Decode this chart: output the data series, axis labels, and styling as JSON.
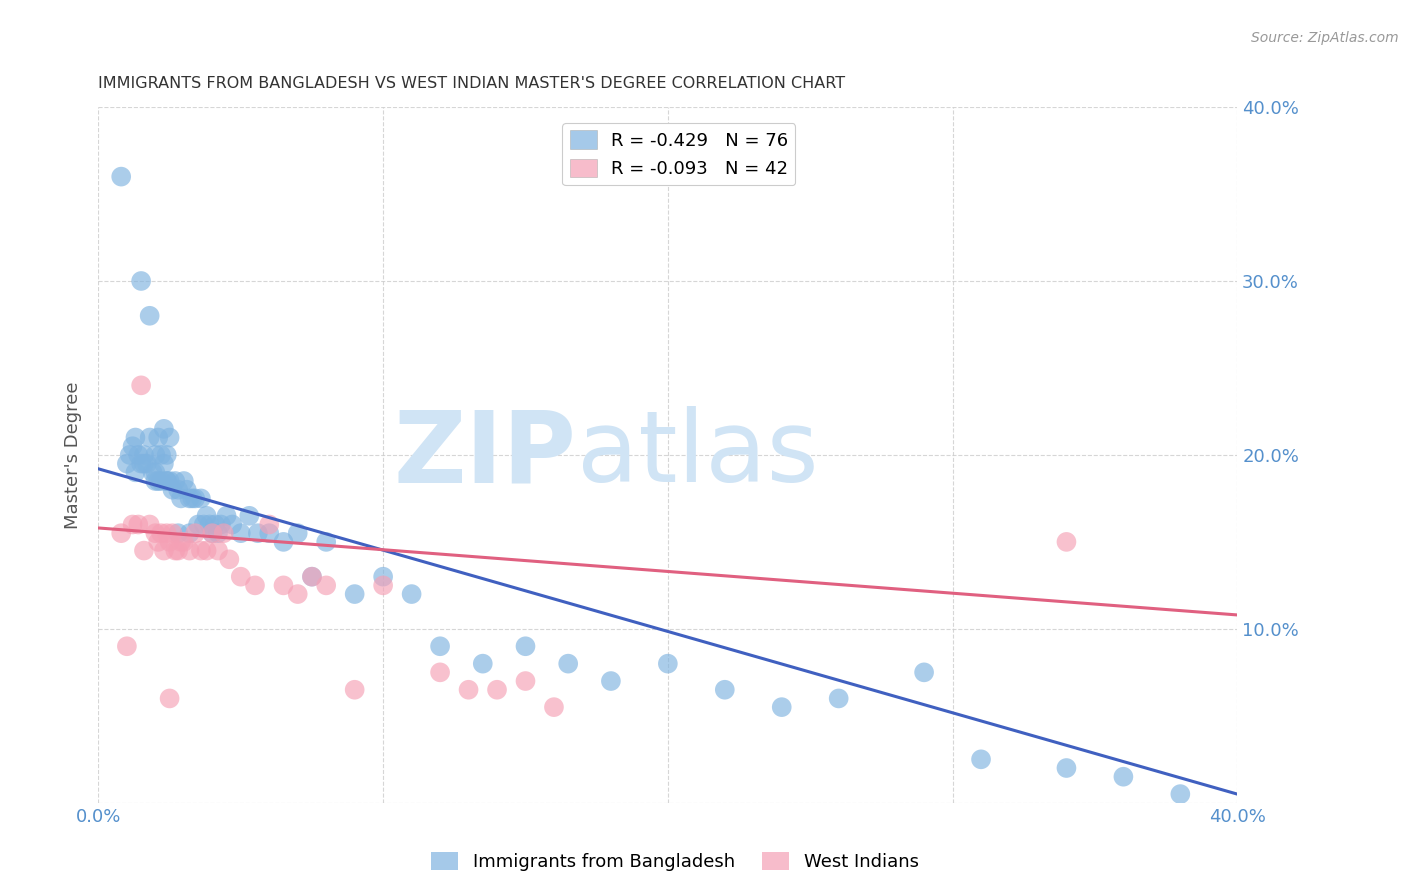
{
  "title": "IMMIGRANTS FROM BANGLADESH VS WEST INDIAN MASTER'S DEGREE CORRELATION CHART",
  "source": "Source: ZipAtlas.com",
  "ylabel": "Master's Degree",
  "xlim": [
    0.0,
    0.4
  ],
  "ylim": [
    0.0,
    0.4
  ],
  "legend_blue_r": "R = -0.429",
  "legend_blue_n": "N = 76",
  "legend_pink_r": "R = -0.093",
  "legend_pink_n": "N = 42",
  "legend_label_blue": "Immigrants from Bangladesh",
  "legend_label_pink": "West Indians",
  "color_blue": "#7fb3e0",
  "color_pink": "#f5a0b5",
  "trendline_blue": "#4060c0",
  "trendline_pink": "#e06080",
  "watermark_zip": "ZIP",
  "watermark_atlas": "atlas",
  "watermark_color": "#d0e4f5",
  "blue_trend_x": [
    0.0,
    0.4
  ],
  "blue_trend_y": [
    0.192,
    0.005
  ],
  "pink_trend_x": [
    0.0,
    0.4
  ],
  "pink_trend_y": [
    0.158,
    0.108
  ],
  "blue_x": [
    0.008,
    0.01,
    0.011,
    0.012,
    0.013,
    0.014,
    0.015,
    0.015,
    0.016,
    0.017,
    0.018,
    0.018,
    0.019,
    0.02,
    0.02,
    0.021,
    0.021,
    0.022,
    0.022,
    0.023,
    0.023,
    0.024,
    0.024,
    0.025,
    0.025,
    0.026,
    0.027,
    0.028,
    0.029,
    0.03,
    0.031,
    0.032,
    0.033,
    0.034,
    0.035,
    0.036,
    0.037,
    0.038,
    0.039,
    0.04,
    0.041,
    0.042,
    0.043,
    0.045,
    0.047,
    0.05,
    0.053,
    0.056,
    0.06,
    0.065,
    0.07,
    0.075,
    0.08,
    0.09,
    0.1,
    0.11,
    0.12,
    0.135,
    0.15,
    0.165,
    0.18,
    0.2,
    0.22,
    0.24,
    0.26,
    0.29,
    0.31,
    0.34,
    0.36,
    0.38,
    0.013,
    0.016,
    0.02,
    0.024,
    0.028,
    0.032
  ],
  "blue_y": [
    0.36,
    0.195,
    0.2,
    0.205,
    0.21,
    0.2,
    0.195,
    0.3,
    0.2,
    0.195,
    0.21,
    0.28,
    0.19,
    0.185,
    0.2,
    0.185,
    0.21,
    0.2,
    0.185,
    0.195,
    0.215,
    0.185,
    0.2,
    0.185,
    0.21,
    0.18,
    0.185,
    0.18,
    0.175,
    0.185,
    0.18,
    0.175,
    0.175,
    0.175,
    0.16,
    0.175,
    0.16,
    0.165,
    0.16,
    0.155,
    0.16,
    0.155,
    0.16,
    0.165,
    0.16,
    0.155,
    0.165,
    0.155,
    0.155,
    0.15,
    0.155,
    0.13,
    0.15,
    0.12,
    0.13,
    0.12,
    0.09,
    0.08,
    0.09,
    0.08,
    0.07,
    0.08,
    0.065,
    0.055,
    0.06,
    0.075,
    0.025,
    0.02,
    0.015,
    0.005,
    0.19,
    0.195,
    0.19,
    0.185,
    0.155,
    0.155
  ],
  "pink_x": [
    0.008,
    0.01,
    0.012,
    0.014,
    0.016,
    0.018,
    0.02,
    0.021,
    0.022,
    0.023,
    0.024,
    0.025,
    0.026,
    0.027,
    0.028,
    0.029,
    0.03,
    0.032,
    0.034,
    0.036,
    0.038,
    0.04,
    0.042,
    0.044,
    0.046,
    0.05,
    0.055,
    0.06,
    0.065,
    0.07,
    0.075,
    0.08,
    0.09,
    0.1,
    0.12,
    0.13,
    0.14,
    0.15,
    0.16,
    0.34,
    0.015,
    0.025
  ],
  "pink_y": [
    0.155,
    0.09,
    0.16,
    0.16,
    0.145,
    0.16,
    0.155,
    0.15,
    0.155,
    0.145,
    0.155,
    0.15,
    0.155,
    0.145,
    0.145,
    0.15,
    0.15,
    0.145,
    0.155,
    0.145,
    0.145,
    0.155,
    0.145,
    0.155,
    0.14,
    0.13,
    0.125,
    0.16,
    0.125,
    0.12,
    0.13,
    0.125,
    0.065,
    0.125,
    0.075,
    0.065,
    0.065,
    0.07,
    0.055,
    0.15,
    0.24,
    0.06
  ],
  "background_color": "#ffffff",
  "grid_color": "#cccccc",
  "tick_label_color": "#5590cc",
  "title_color": "#333333"
}
